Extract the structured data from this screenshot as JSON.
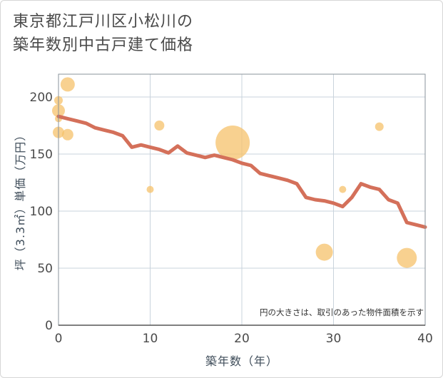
{
  "title_lines": [
    "東京都江戸川区小松川の",
    "築年数別中古戸建て価格"
  ],
  "chart_data": {
    "type": "scatter+line",
    "xlabel": "築年数（年）",
    "ylabel": "坪（3.3㎡）単価（万円）",
    "xlim": [
      0,
      40
    ],
    "ylim": [
      0,
      220
    ],
    "xticks": [
      0,
      10,
      20,
      30,
      40
    ],
    "yticks": [
      0,
      50,
      100,
      150,
      200
    ],
    "grid": true,
    "note": "円の大きさは、取引のあった物件面積を示す",
    "colors": {
      "line": "#d4705a",
      "bubble": "#f5c26b",
      "grid": "#c9d3dc",
      "axis": "#8a939b"
    },
    "line": {
      "x": [
        0,
        1,
        2,
        3,
        4,
        5,
        6,
        7,
        8,
        9,
        10,
        11,
        12,
        13,
        14,
        15,
        16,
        17,
        18,
        19,
        20,
        21,
        22,
        23,
        24,
        25,
        26,
        27,
        28,
        29,
        30,
        31,
        32,
        33,
        34,
        35,
        36,
        37,
        38,
        39,
        40
      ],
      "y": [
        183,
        181,
        179,
        177,
        173,
        171,
        169,
        166,
        156,
        158,
        156,
        154,
        151,
        157,
        151,
        149,
        147,
        149,
        147,
        145,
        142,
        140,
        133,
        131,
        129,
        127,
        124,
        112,
        110,
        109,
        107,
        104,
        112,
        124,
        121,
        119,
        110,
        107,
        90,
        88,
        86
      ]
    },
    "bubbles": [
      {
        "x": 0,
        "y": 197,
        "size": 6
      },
      {
        "x": 0,
        "y": 188,
        "size": 9
      },
      {
        "x": 0,
        "y": 181,
        "size": 5
      },
      {
        "x": 0,
        "y": 169,
        "size": 8
      },
      {
        "x": 1,
        "y": 211,
        "size": 10
      },
      {
        "x": 1,
        "y": 167,
        "size": 8
      },
      {
        "x": 10,
        "y": 119,
        "size": 5
      },
      {
        "x": 11,
        "y": 175,
        "size": 7
      },
      {
        "x": 19,
        "y": 160,
        "size": 24
      },
      {
        "x": 29,
        "y": 64,
        "size": 12
      },
      {
        "x": 31,
        "y": 119,
        "size": 5
      },
      {
        "x": 35,
        "y": 174,
        "size": 6
      },
      {
        "x": 38,
        "y": 59,
        "size": 14
      }
    ]
  }
}
